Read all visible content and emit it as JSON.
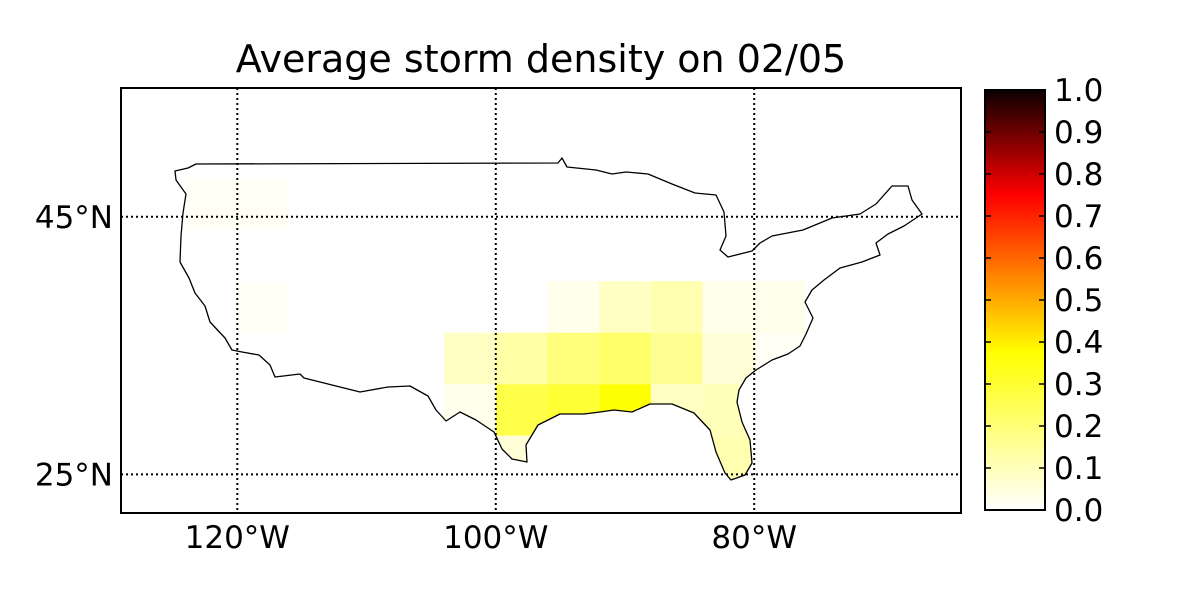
{
  "chart_data": {
    "type": "heatmap",
    "title": "Average storm density on 02/05",
    "xlim": [
      -129,
      -64
    ],
    "ylim": [
      22,
      55
    ],
    "x_ticks": [
      {
        "value": -120,
        "label": "120°W"
      },
      {
        "value": -100,
        "label": "100°W"
      },
      {
        "value": -80,
        "label": "80°W"
      }
    ],
    "y_ticks": [
      {
        "value": 45,
        "label": "45°N"
      },
      {
        "value": 25,
        "label": "25°N"
      }
    ],
    "grid": true,
    "colormap": "hot_r",
    "colorbar": {
      "range": [
        0.0,
        1.0
      ],
      "ticks": [
        "0.0",
        "0.1",
        "0.2",
        "0.3",
        "0.4",
        "0.5",
        "0.6",
        "0.7",
        "0.8",
        "0.9",
        "1.0"
      ],
      "placement": "right"
    },
    "cell_size_degrees": 4,
    "cells": [
      {
        "lon": [
          -124,
          -120
        ],
        "lat": [
          44,
          48
        ],
        "value": 0.01
      },
      {
        "lon": [
          -120,
          -116
        ],
        "lat": [
          44,
          48
        ],
        "value": 0.01
      },
      {
        "lon": [
          -120,
          -116
        ],
        "lat": [
          36,
          40
        ],
        "value": 0.01
      },
      {
        "lon": [
          -104,
          -100
        ],
        "lat": [
          32,
          36
        ],
        "value": 0.06
      },
      {
        "lon": [
          -104,
          -100
        ],
        "lat": [
          28,
          32
        ],
        "value": 0.02
      },
      {
        "lon": [
          -100,
          -96
        ],
        "lat": [
          32,
          36
        ],
        "value": 0.09
      },
      {
        "lon": [
          -100,
          -96
        ],
        "lat": [
          28,
          32
        ],
        "value": 0.18
      },
      {
        "lon": [
          -100,
          -96
        ],
        "lat": [
          24,
          28
        ],
        "value": 0.04
      },
      {
        "lon": [
          -96,
          -92
        ],
        "lat": [
          36,
          40
        ],
        "value": 0.02
      },
      {
        "lon": [
          -96,
          -92
        ],
        "lat": [
          32,
          36
        ],
        "value": 0.13
      },
      {
        "lon": [
          -96,
          -92
        ],
        "lat": [
          28,
          32
        ],
        "value": 0.2
      },
      {
        "lon": [
          -96,
          -92
        ],
        "lat": [
          24,
          28
        ],
        "value": 0.04
      },
      {
        "lon": [
          -92,
          -88
        ],
        "lat": [
          36,
          40
        ],
        "value": 0.06
      },
      {
        "lon": [
          -92,
          -88
        ],
        "lat": [
          32,
          36
        ],
        "value": 0.15
      },
      {
        "lon": [
          -92,
          -88
        ],
        "lat": [
          28,
          32
        ],
        "value": 0.25
      },
      {
        "lon": [
          -88,
          -84
        ],
        "lat": [
          36,
          40
        ],
        "value": 0.08
      },
      {
        "lon": [
          -88,
          -84
        ],
        "lat": [
          32,
          36
        ],
        "value": 0.11
      },
      {
        "lon": [
          -88,
          -84
        ],
        "lat": [
          28,
          32
        ],
        "value": 0.06
      },
      {
        "lon": [
          -84,
          -80
        ],
        "lat": [
          36,
          40
        ],
        "value": 0.02
      },
      {
        "lon": [
          -84,
          -80
        ],
        "lat": [
          32,
          36
        ],
        "value": 0.04
      },
      {
        "lon": [
          -84,
          -80
        ],
        "lat": [
          28,
          32
        ],
        "value": 0.07
      },
      {
        "lon": [
          -84,
          -80
        ],
        "lat": [
          24,
          28
        ],
        "value": 0.08
      },
      {
        "lon": [
          -80,
          -76
        ],
        "lat": [
          36,
          40
        ],
        "value": 0.02
      },
      {
        "lon": [
          -80,
          -76
        ],
        "lat": [
          32,
          36
        ],
        "value": 0.01
      }
    ]
  }
}
